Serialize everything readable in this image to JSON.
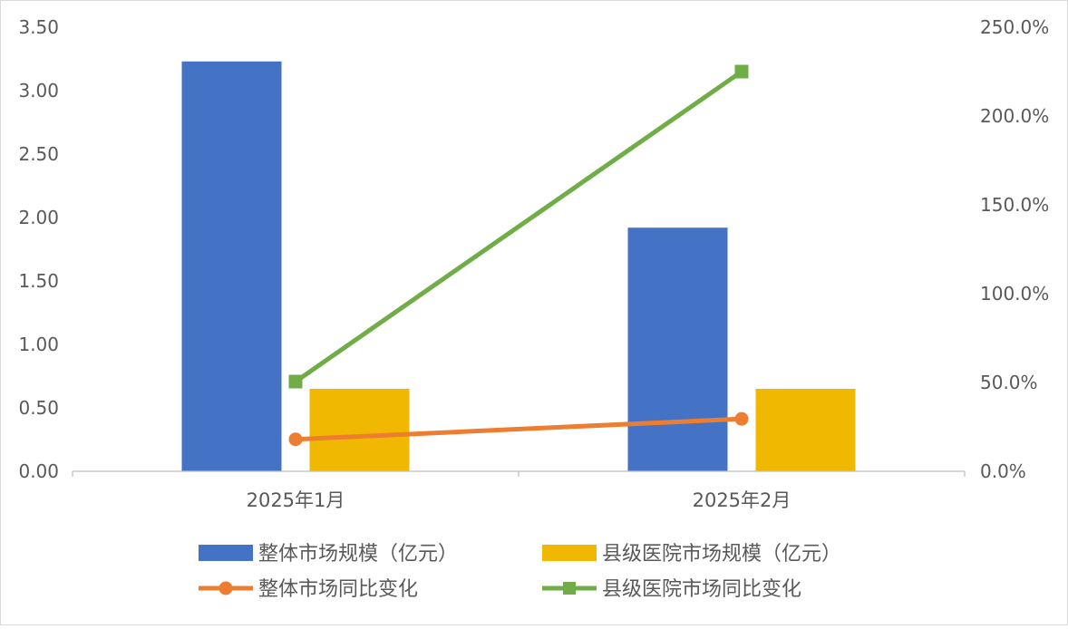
{
  "chart_data": {
    "type": "bar",
    "categories": [
      "2025年1月",
      "2025年2月"
    ],
    "series": [
      {
        "name": "整体市场规模（亿元）",
        "kind": "bar",
        "axis": "left",
        "color": "#4472c4",
        "values": [
          3.23,
          1.92
        ]
      },
      {
        "name": "县级医院市场规模（亿元）",
        "kind": "bar",
        "axis": "left",
        "color": "#f0b800",
        "values": [
          0.65,
          0.65
        ]
      },
      {
        "name": "整体市场同比变化",
        "kind": "line",
        "axis": "right",
        "marker": "circle",
        "color": "#ed7d31",
        "values": [
          18.0,
          29.5
        ]
      },
      {
        "name": "县级医院市场同比变化",
        "kind": "line",
        "axis": "right",
        "marker": "square",
        "color": "#70ad47",
        "values": [
          50.5,
          225.0
        ]
      }
    ],
    "y_left": {
      "min": 0,
      "max": 3.5,
      "ticks": [
        "0.00",
        "0.50",
        "1.00",
        "1.50",
        "2.00",
        "2.50",
        "3.00",
        "3.50"
      ]
    },
    "y_right": {
      "min": 0,
      "max": 250,
      "ticks": [
        "0.0%",
        "50.0%",
        "100.0%",
        "150.0%",
        "200.0%",
        "250.0%"
      ]
    },
    "grid": false,
    "legend_position": "bottom"
  }
}
